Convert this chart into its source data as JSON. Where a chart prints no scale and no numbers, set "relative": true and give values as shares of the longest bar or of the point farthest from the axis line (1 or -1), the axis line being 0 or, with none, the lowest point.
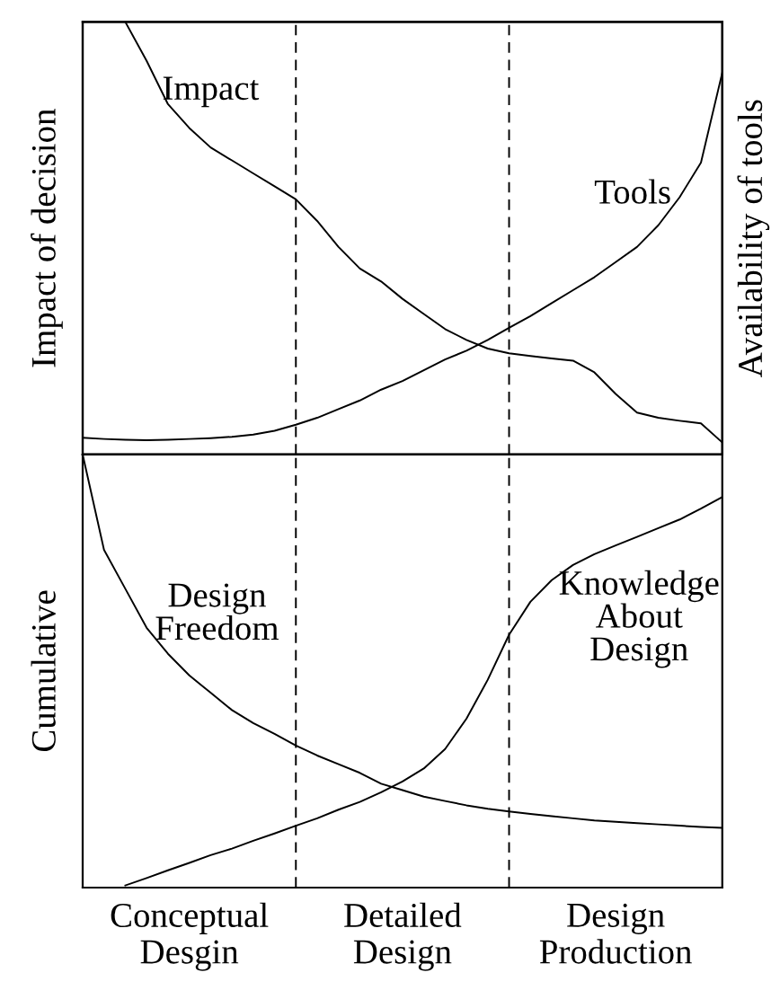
{
  "chart_data": [
    {
      "type": "line",
      "relative": true,
      "ylabel": "Impact of decision",
      "y2label": "Availability of tools",
      "tick_labels": false,
      "line_style": "solid",
      "categories": [
        null,
        null,
        null,
        null,
        null,
        null,
        null,
        null,
        null,
        null,
        null,
        null,
        null,
        null,
        null,
        null,
        null,
        null,
        null,
        null,
        null,
        null,
        null,
        null,
        null,
        null,
        null,
        null,
        null,
        null,
        null
      ],
      "series": [
        {
          "name": "Impact",
          "color": "#000000",
          "values": [
            null,
            null,
            1.0,
            0.91,
            0.81,
            0.755,
            0.71,
            0.68,
            0.65,
            0.62,
            0.59,
            0.54,
            0.48,
            0.43,
            0.4,
            0.36,
            0.325,
            0.29,
            0.265,
            0.245,
            0.234,
            0.228,
            0.222,
            0.217,
            0.19,
            0.14,
            0.097,
            0.085,
            0.078,
            0.072,
            0.028
          ]
        },
        {
          "name": "Tools",
          "color": "#000000",
          "values": [
            0.039,
            0.036,
            0.034,
            0.033,
            0.034,
            0.036,
            0.038,
            0.041,
            0.046,
            0.055,
            0.069,
            0.085,
            0.105,
            0.125,
            0.15,
            0.17,
            0.195,
            0.22,
            0.24,
            0.265,
            0.293,
            0.32,
            0.35,
            0.38,
            0.41,
            0.445,
            0.48,
            0.53,
            0.595,
            0.675,
            0.883
          ]
        }
      ]
    },
    {
      "type": "line",
      "relative": true,
      "ylabel": "Cumulative",
      "tick_labels": "x",
      "line_style": "solid",
      "categories": [
        null,
        null,
        null,
        null,
        null,
        "Conceptual\nDesgin",
        null,
        null,
        null,
        null,
        null,
        null,
        null,
        null,
        null,
        "Detailed\nDesign",
        null,
        null,
        null,
        null,
        null,
        null,
        null,
        null,
        null,
        "Design\nProduction",
        null,
        null,
        null,
        null,
        null
      ],
      "series": [
        {
          "name": "Design\nFreedom",
          "color": "#000000",
          "values": [
            1.0,
            0.78,
            0.69,
            0.6,
            0.54,
            0.49,
            0.45,
            0.41,
            0.38,
            0.355,
            0.328,
            0.305,
            0.285,
            0.265,
            0.24,
            0.225,
            0.21,
            0.2,
            0.19,
            0.182,
            0.176,
            0.17,
            0.165,
            0.16,
            0.155,
            0.152,
            0.149,
            0.146,
            0.143,
            0.14,
            0.138
          ]
        },
        {
          "name": "Knowledge\nAbout\nDesign",
          "color": "#000000",
          "values": [
            null,
            null,
            0.005,
            0.022,
            0.04,
            0.057,
            0.075,
            0.09,
            0.108,
            0.125,
            0.143,
            0.16,
            0.18,
            0.198,
            0.22,
            0.245,
            0.275,
            0.32,
            0.39,
            0.48,
            0.584,
            0.66,
            0.71,
            0.745,
            0.77,
            0.79,
            0.81,
            0.83,
            0.85,
            0.875,
            0.902
          ]
        }
      ]
    }
  ]
}
